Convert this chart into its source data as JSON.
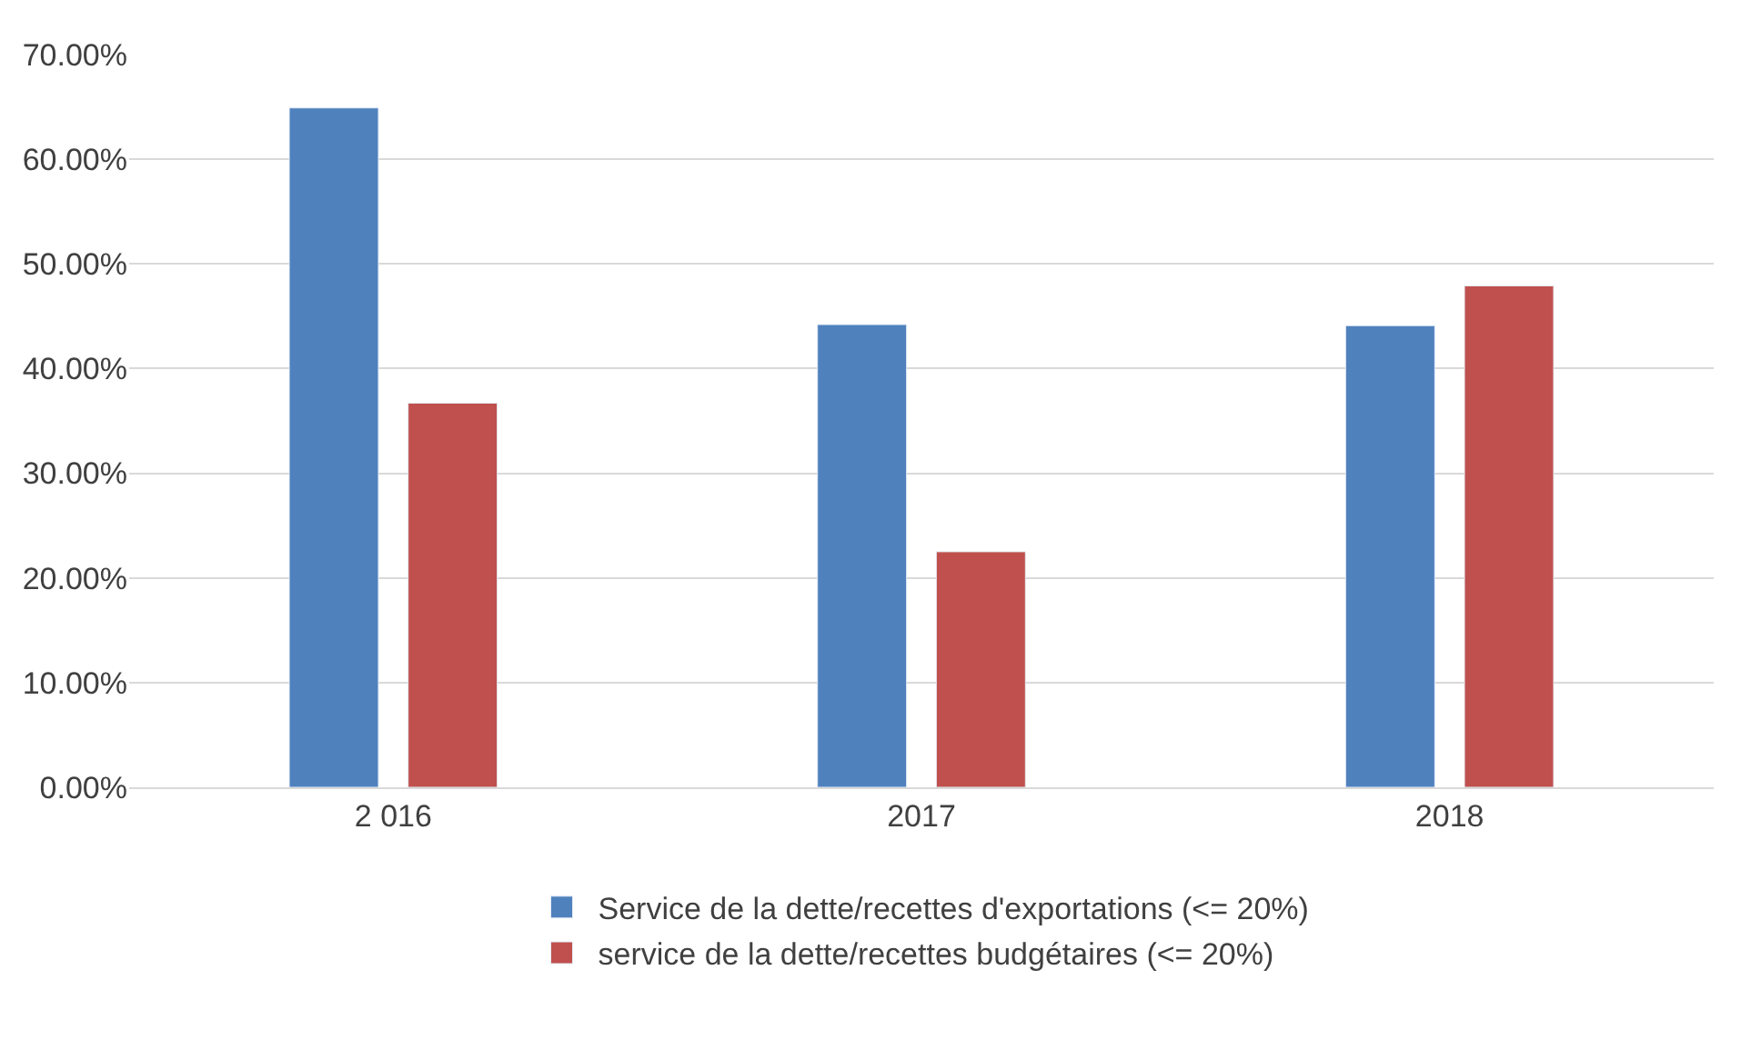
{
  "chart_data": {
    "type": "bar",
    "categories": [
      "2 016",
      "2017",
      "2018"
    ],
    "series": [
      {
        "name": "Service de la dette/recettes d'exportations (<= 20%)",
        "color": "#4f81bd",
        "values": [
          64.9,
          44.2,
          44.1
        ]
      },
      {
        "name": "service de la dette/recettes budgétaires (<= 20%)",
        "color": "#c0504d",
        "values": [
          36.7,
          22.5,
          47.9
        ]
      }
    ],
    "ylim": [
      0,
      70
    ],
    "yticks": [
      {
        "value": 0,
        "label": "0.00%"
      },
      {
        "value": 10,
        "label": "10.00%"
      },
      {
        "value": 20,
        "label": "20.00%"
      },
      {
        "value": 30,
        "label": "30.00%"
      },
      {
        "value": 40,
        "label": "40.00%"
      },
      {
        "value": 50,
        "label": "50.00%"
      },
      {
        "value": 60,
        "label": "60.00%"
      },
      {
        "value": 70,
        "label": "70.00%"
      }
    ],
    "grid": "y",
    "legend": "bottom"
  }
}
